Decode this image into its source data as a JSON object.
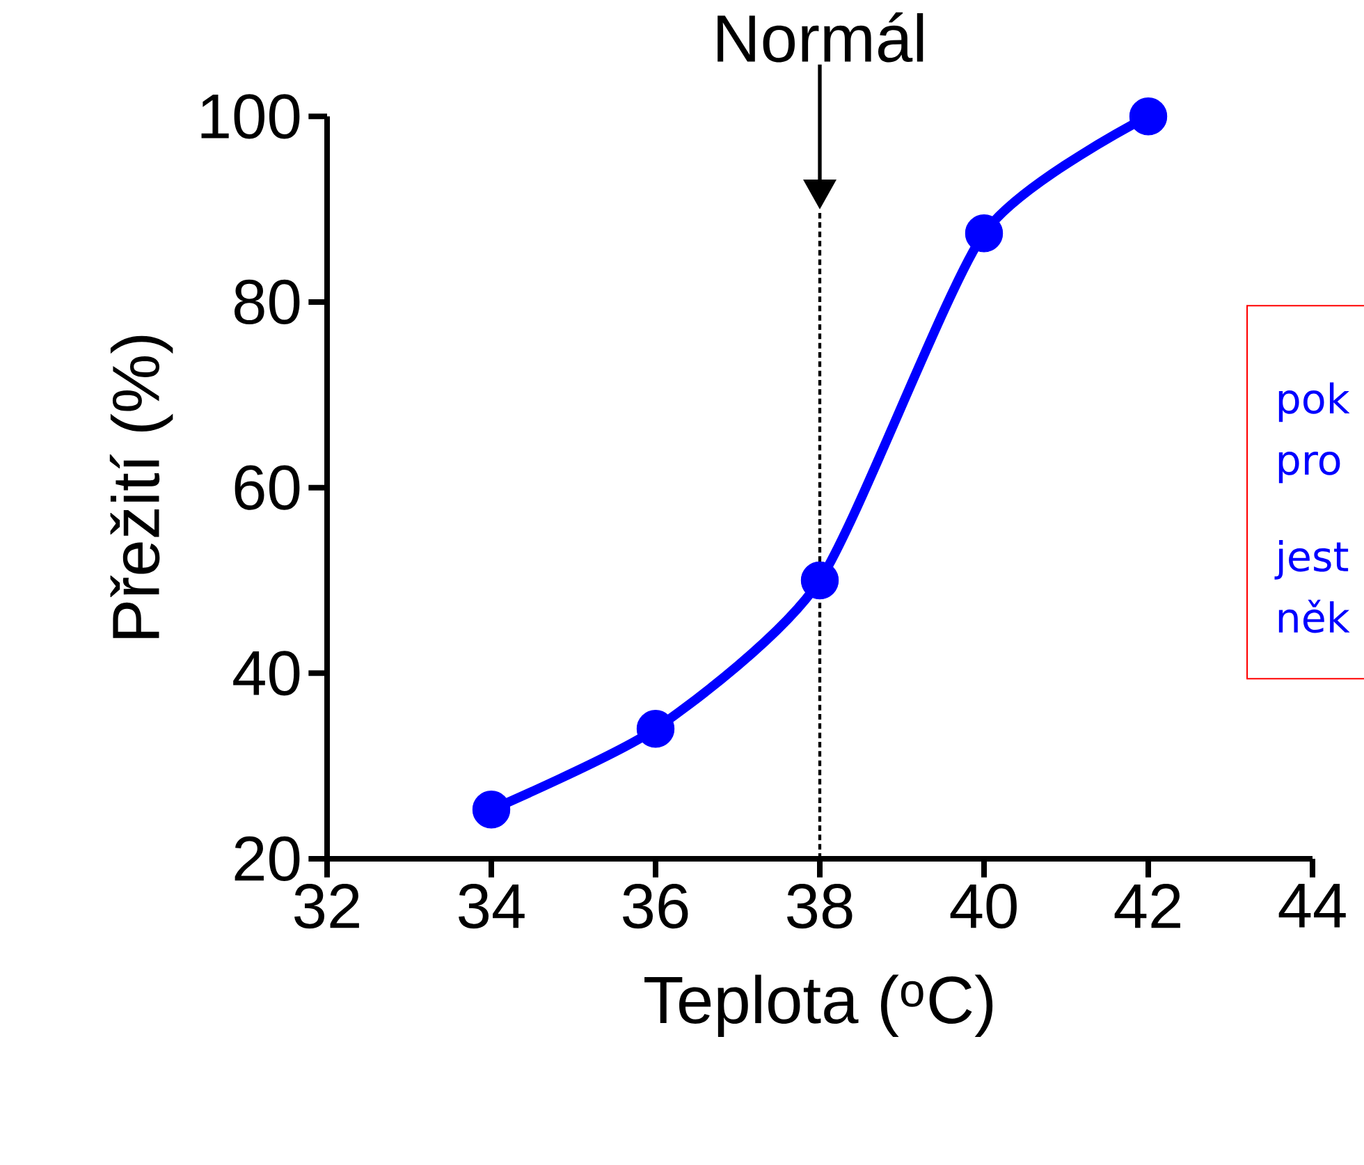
{
  "chart_data": {
    "type": "line",
    "xlabel": "Teplota ($^{o}$C)",
    "ylabel": "Přežití (%)",
    "x": [
      34,
      36,
      38,
      40,
      42
    ],
    "series": [
      {
        "color": "#0000ff",
        "values": [
          25.3,
          34,
          50,
          87.4,
          100
        ]
      }
    ],
    "marker": "circle",
    "line_style": "solid",
    "xlim": [
      32,
      44
    ],
    "xticks": [
      32,
      34,
      36,
      38,
      40,
      42,
      44
    ],
    "ylim": [
      20,
      100
    ],
    "yticks": [
      20,
      40,
      60,
      80,
      100
    ],
    "grid": false,
    "ref_lines": [
      {
        "axis": "x",
        "value": 38,
        "label": "Normál",
        "line_style": "dashed",
        "color": "#000000"
      }
    ],
    "annotations": [
      "pok",
      "pro",
      "jest",
      "něk"
    ]
  }
}
